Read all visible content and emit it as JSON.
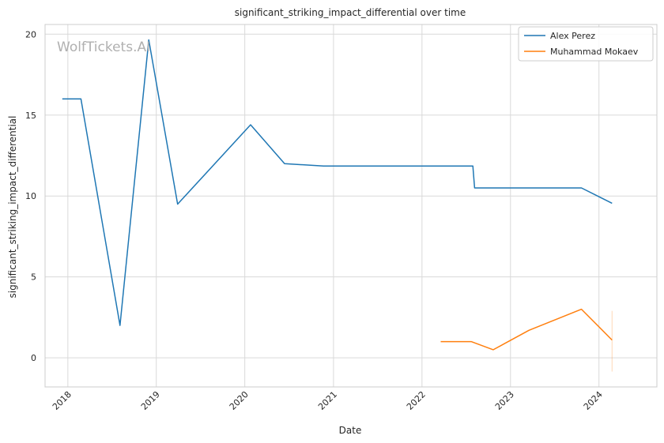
{
  "chart_data": {
    "type": "line",
    "title": "significant_striking_impact_differential over time",
    "xlabel": "Date",
    "ylabel": "significant_striking_impact_differential",
    "watermark": "WolfTickets.AI",
    "xlim": [
      "2017-09-29",
      "2024-08-27"
    ],
    "ylim": [
      -1.8,
      20.6
    ],
    "grid": true,
    "legend_position": "upper-right",
    "x_ticks": [
      {
        "date": "2018-01-01",
        "label": "2018"
      },
      {
        "date": "2019-01-01",
        "label": "2019"
      },
      {
        "date": "2020-01-01",
        "label": "2020"
      },
      {
        "date": "2021-01-01",
        "label": "2021"
      },
      {
        "date": "2022-01-01",
        "label": "2022"
      },
      {
        "date": "2023-01-01",
        "label": "2023"
      },
      {
        "date": "2024-01-01",
        "label": "2024"
      }
    ],
    "y_ticks": [
      {
        "value": 0,
        "label": "0"
      },
      {
        "value": 5,
        "label": "5"
      },
      {
        "value": 10,
        "label": "10"
      },
      {
        "value": 15,
        "label": "15"
      },
      {
        "value": 20,
        "label": "20"
      }
    ],
    "series": [
      {
        "name": "Alex Perez",
        "color": "#1f77b4",
        "points": [
          {
            "x": "2017-12-09",
            "y": 16.0
          },
          {
            "x": "2018-02-24",
            "y": 16.0
          },
          {
            "x": "2018-08-04",
            "y": 2.0
          },
          {
            "x": "2018-12-01",
            "y": 19.65
          },
          {
            "x": "2019-03-30",
            "y": 9.5
          },
          {
            "x": "2020-01-25",
            "y": 14.4
          },
          {
            "x": "2020-06-13",
            "y": 12.0
          },
          {
            "x": "2020-11-21",
            "y": 11.85
          },
          {
            "x": "2022-07-30",
            "y": 11.85
          },
          {
            "x": "2022-08-06",
            "y": 10.5
          },
          {
            "x": "2023-10-21",
            "y": 10.5
          },
          {
            "x": "2024-02-24",
            "y": 9.55
          }
        ]
      },
      {
        "name": "Muhammad Mokaev",
        "color": "#ff7f0e",
        "points": [
          {
            "x": "2022-03-19",
            "y": 1.0
          },
          {
            "x": "2022-07-23",
            "y": 1.0
          },
          {
            "x": "2022-10-22",
            "y": 0.5
          },
          {
            "x": "2023-03-18",
            "y": 1.7
          },
          {
            "x": "2023-10-21",
            "y": 3.0
          },
          {
            "x": "2024-02-24",
            "y": 1.1
          }
        ],
        "error_band": {
          "x": "2024-02-24",
          "low": -0.85,
          "high": 2.9
        }
      }
    ]
  }
}
